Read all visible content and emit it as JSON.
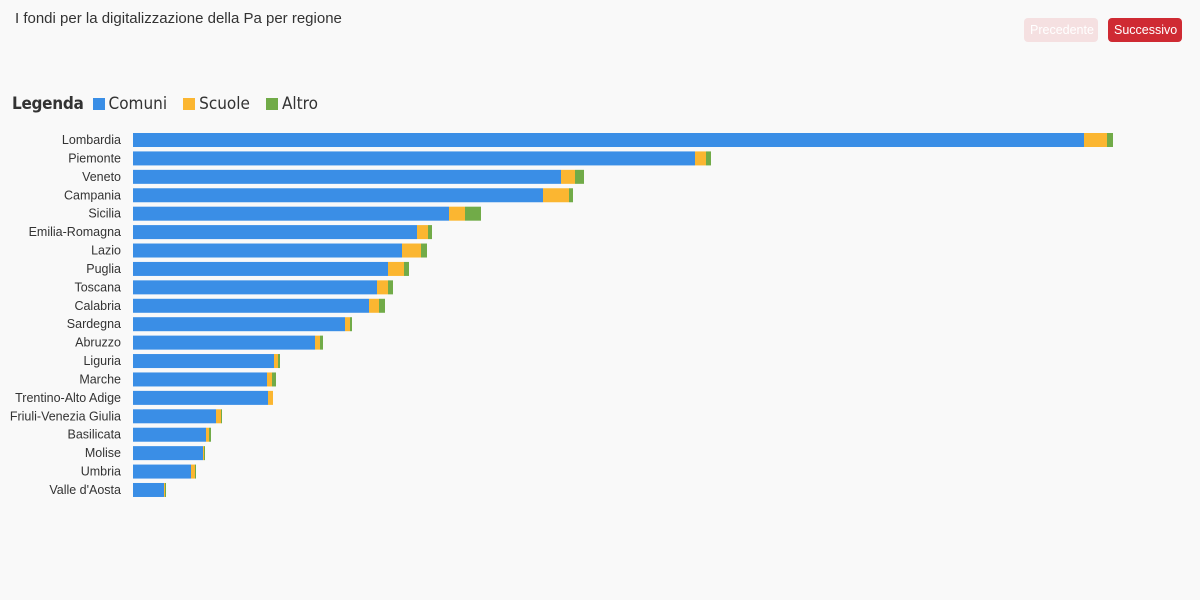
{
  "header": {
    "title": "I fondi per la digitalizzazione della Pa per regione",
    "prev_label": "Precedente",
    "next_label": "Successivo"
  },
  "legend": {
    "title": "Legenda",
    "items": [
      {
        "label": "Comuni",
        "color": "#3a8ee6"
      },
      {
        "label": "Scuole",
        "color": "#fbb631"
      },
      {
        "label": "Altro",
        "color": "#71ab48"
      }
    ]
  },
  "chart_data": {
    "type": "bar",
    "orientation": "horizontal",
    "stacked": true,
    "categories": [
      "Lombardia",
      "Piemonte",
      "Veneto",
      "Campania",
      "Sicilia",
      "Emilia-Romagna",
      "Lazio",
      "Puglia",
      "Toscana",
      "Calabria",
      "Sardegna",
      "Abruzzo",
      "Liguria",
      "Marche",
      "Trentino-Alto Adige",
      "Friuli-Venezia Giulia",
      "Basilicata",
      "Molise",
      "Umbria",
      "Valle d'Aosta"
    ],
    "series": [
      {
        "name": "Comuni",
        "color": "#3a8ee6",
        "values": [
          951,
          562,
          428,
          410,
          316,
          284,
          269,
          255,
          244,
          236,
          212,
          182,
          141,
          134,
          135,
          83,
          73,
          70,
          58,
          31
        ]
      },
      {
        "name": "Scuole",
        "color": "#fbb631",
        "values": [
          23,
          11,
          14,
          26,
          16,
          11,
          19,
          16,
          11,
          10,
          5,
          5,
          4,
          5,
          5,
          5,
          3,
          1,
          4,
          1
        ]
      },
      {
        "name": "Altro",
        "color": "#71ab48",
        "values": [
          6,
          5,
          9,
          4,
          16,
          4,
          6,
          5,
          5,
          6,
          2,
          3,
          2,
          4,
          0,
          1,
          2,
          1,
          1,
          1
        ]
      }
    ],
    "grid": false,
    "legend_position": "top-left"
  }
}
